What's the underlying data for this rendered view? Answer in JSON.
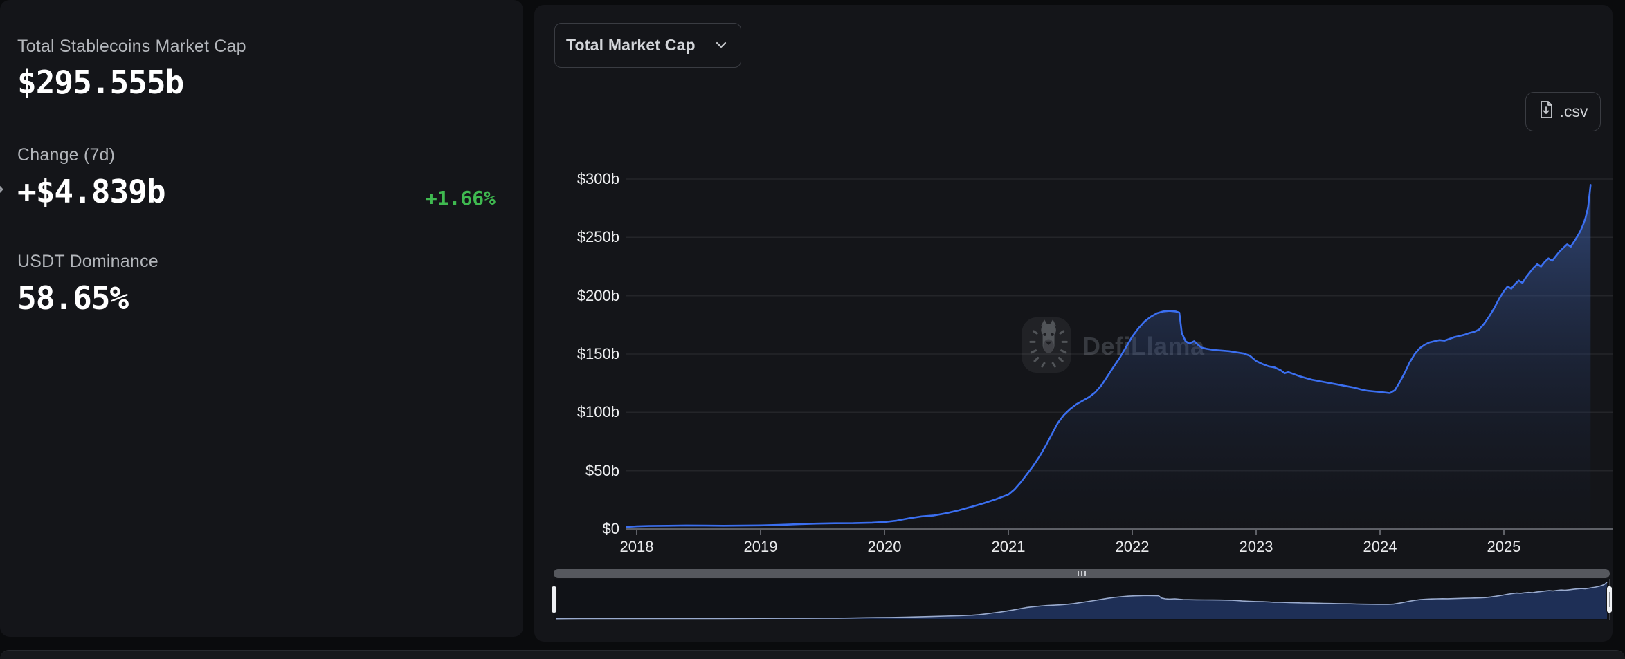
{
  "left_panel": {
    "stats": [
      {
        "label": "Total Stablecoins Market Cap",
        "value": "$295.555b"
      },
      {
        "label": "Change (7d)",
        "value": "+$4.839b",
        "pct": "+1.66%"
      },
      {
        "label": "USDT Dominance",
        "value": "58.65%"
      }
    ],
    "collapse_arrow": "›"
  },
  "toolbar": {
    "metric_selector": "Total Market Cap",
    "csv_label": ".csv"
  },
  "watermark": {
    "text": "DefiLlama"
  },
  "colors": {
    "accent_line": "#3b6ff0",
    "fill_top": "rgba(76,116,202,0.55)",
    "fill_bottom": "rgba(18,28,54,0.04)",
    "positive_green": "#3fb950",
    "grid": "rgba(255,255,255,0.07)",
    "axis": "#5f6167",
    "navigator_fill": "#20315a",
    "navigator_stroke": "#9aabce"
  },
  "chart_data": {
    "type": "area",
    "title": "Total Market Cap",
    "series_name": "Total Stablecoins Market Cap ($b)",
    "unit": "$b",
    "grid": "horizontal",
    "legend": "none",
    "xlim": [
      2017.92,
      2025.7
    ],
    "ylim": [
      0,
      300
    ],
    "xticks": {
      "values": [
        2018,
        2019,
        2020,
        2021,
        2022,
        2023,
        2024,
        2025
      ],
      "labels": [
        "2018",
        "2019",
        "2020",
        "2021",
        "2022",
        "2023",
        "2024",
        "2025"
      ]
    },
    "yticks": {
      "values": [
        0,
        50,
        100,
        150,
        200,
        250,
        300
      ],
      "labels": [
        "$0",
        "$50b",
        "$100b",
        "$150b",
        "$200b",
        "$250b",
        "$300b"
      ]
    },
    "points": [
      [
        2017.92,
        1.8
      ],
      [
        2018,
        2.3
      ],
      [
        2018.1,
        2.6
      ],
      [
        2018.25,
        2.8
      ],
      [
        2018.4,
        3
      ],
      [
        2018.55,
        2.9
      ],
      [
        2018.7,
        2.8
      ],
      [
        2018.85,
        2.9
      ],
      [
        2019,
        3.1
      ],
      [
        2019.15,
        3.5
      ],
      [
        2019.3,
        4.1
      ],
      [
        2019.45,
        4.6
      ],
      [
        2019.6,
        4.9
      ],
      [
        2019.75,
        5
      ],
      [
        2019.9,
        5.4
      ],
      [
        2020,
        5.9
      ],
      [
        2020.1,
        7.2
      ],
      [
        2020.2,
        9.2
      ],
      [
        2020.3,
        10.8
      ],
      [
        2020.4,
        11.6
      ],
      [
        2020.5,
        13.5
      ],
      [
        2020.6,
        16
      ],
      [
        2020.7,
        19
      ],
      [
        2020.8,
        22
      ],
      [
        2020.9,
        25.5
      ],
      [
        2021,
        29.5
      ],
      [
        2021.05,
        34
      ],
      [
        2021.1,
        40
      ],
      [
        2021.15,
        47
      ],
      [
        2021.2,
        54
      ],
      [
        2021.25,
        62
      ],
      [
        2021.3,
        71
      ],
      [
        2021.35,
        81
      ],
      [
        2021.4,
        91
      ],
      [
        2021.45,
        98
      ],
      [
        2021.5,
        103
      ],
      [
        2021.55,
        107
      ],
      [
        2021.6,
        110
      ],
      [
        2021.65,
        113
      ],
      [
        2021.7,
        117
      ],
      [
        2021.75,
        123
      ],
      [
        2021.8,
        131
      ],
      [
        2021.85,
        139
      ],
      [
        2021.9,
        147
      ],
      [
        2021.95,
        156
      ],
      [
        2022,
        165
      ],
      [
        2022.05,
        172
      ],
      [
        2022.1,
        178
      ],
      [
        2022.15,
        182
      ],
      [
        2022.2,
        185
      ],
      [
        2022.25,
        186.5
      ],
      [
        2022.3,
        187
      ],
      [
        2022.35,
        186.5
      ],
      [
        2022.38,
        185.5
      ],
      [
        2022.4,
        168
      ],
      [
        2022.43,
        161
      ],
      [
        2022.46,
        159
      ],
      [
        2022.5,
        161
      ],
      [
        2022.53,
        158
      ],
      [
        2022.56,
        155.5
      ],
      [
        2022.6,
        154.5
      ],
      [
        2022.66,
        153.5
      ],
      [
        2022.72,
        153
      ],
      [
        2022.78,
        152.5
      ],
      [
        2022.84,
        151.5
      ],
      [
        2022.9,
        150.5
      ],
      [
        2022.95,
        148.5
      ],
      [
        2023,
        144
      ],
      [
        2023.05,
        141.5
      ],
      [
        2023.1,
        139.5
      ],
      [
        2023.15,
        138.5
      ],
      [
        2023.2,
        136
      ],
      [
        2023.23,
        133.5
      ],
      [
        2023.26,
        134.5
      ],
      [
        2023.3,
        133
      ],
      [
        2023.35,
        131
      ],
      [
        2023.4,
        129.5
      ],
      [
        2023.45,
        128
      ],
      [
        2023.5,
        127
      ],
      [
        2023.55,
        126
      ],
      [
        2023.6,
        125
      ],
      [
        2023.65,
        124
      ],
      [
        2023.7,
        123
      ],
      [
        2023.75,
        122
      ],
      [
        2023.8,
        121
      ],
      [
        2023.85,
        119.5
      ],
      [
        2023.9,
        118.5
      ],
      [
        2023.95,
        118
      ],
      [
        2024,
        117.5
      ],
      [
        2024.04,
        117
      ],
      [
        2024.08,
        116.5
      ],
      [
        2024.12,
        119
      ],
      [
        2024.16,
        126
      ],
      [
        2024.2,
        134
      ],
      [
        2024.24,
        143
      ],
      [
        2024.28,
        150
      ],
      [
        2024.32,
        155
      ],
      [
        2024.36,
        158
      ],
      [
        2024.4,
        160
      ],
      [
        2024.44,
        161
      ],
      [
        2024.48,
        162
      ],
      [
        2024.52,
        161.5
      ],
      [
        2024.56,
        163
      ],
      [
        2024.6,
        164.5
      ],
      [
        2024.64,
        165.5
      ],
      [
        2024.68,
        166.5
      ],
      [
        2024.72,
        168
      ],
      [
        2024.76,
        169
      ],
      [
        2024.8,
        171
      ],
      [
        2024.84,
        176
      ],
      [
        2024.88,
        182
      ],
      [
        2024.92,
        189
      ],
      [
        2024.96,
        197
      ],
      [
        2025,
        204
      ],
      [
        2025.03,
        208
      ],
      [
        2025.06,
        206
      ],
      [
        2025.09,
        210
      ],
      [
        2025.12,
        213
      ],
      [
        2025.15,
        211
      ],
      [
        2025.18,
        216
      ],
      [
        2025.21,
        220
      ],
      [
        2025.24,
        224
      ],
      [
        2025.27,
        227
      ],
      [
        2025.3,
        225
      ],
      [
        2025.33,
        229
      ],
      [
        2025.36,
        232
      ],
      [
        2025.39,
        230
      ],
      [
        2025.42,
        234
      ],
      [
        2025.45,
        238
      ],
      [
        2025.48,
        241
      ],
      [
        2025.51,
        244
      ],
      [
        2025.54,
        242
      ],
      [
        2025.57,
        247
      ],
      [
        2025.6,
        252
      ],
      [
        2025.62,
        256
      ],
      [
        2025.64,
        261
      ],
      [
        2025.66,
        267
      ],
      [
        2025.68,
        276
      ],
      [
        2025.7,
        295
      ]
    ]
  }
}
